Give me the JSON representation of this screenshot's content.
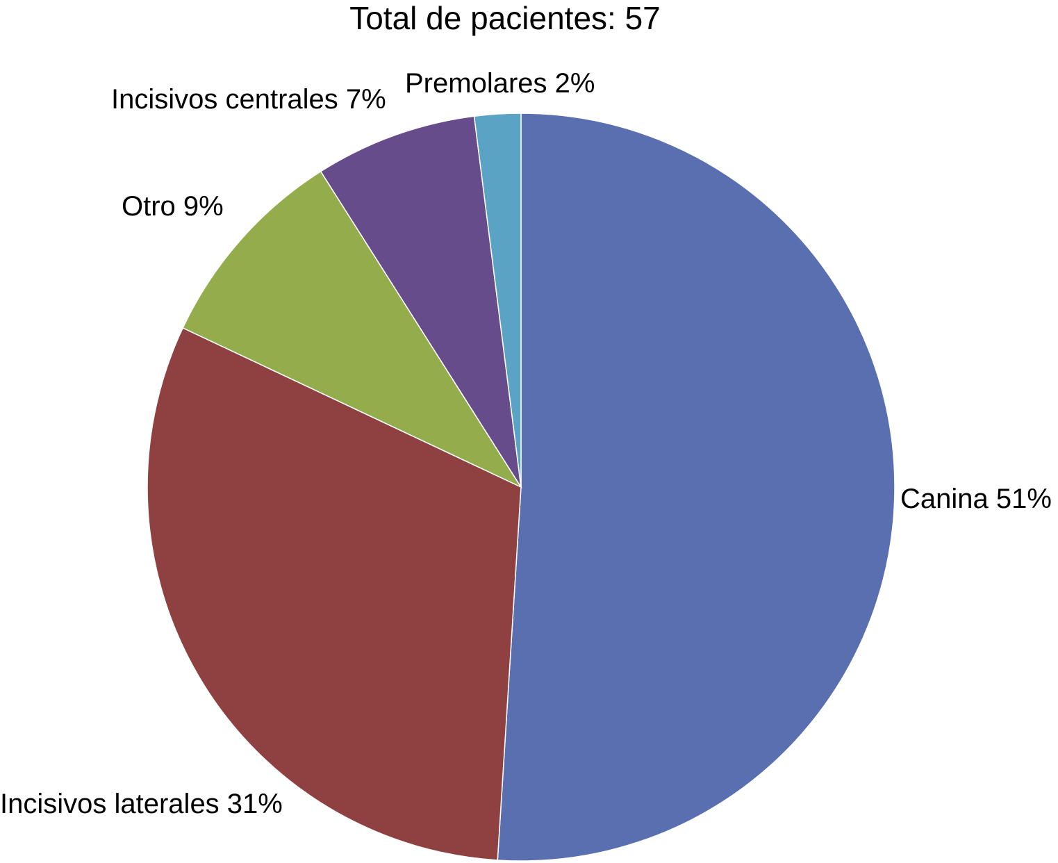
{
  "chart_data": {
    "type": "pie",
    "title": "Total de pacientes: 57",
    "slices": [
      {
        "name": "Canina",
        "value": 51,
        "label": "Canina 51%",
        "color": "#5a6fb0"
      },
      {
        "name": "Incisivos laterales",
        "value": 31,
        "label": "Incisivos laterales 31%",
        "color": "#8f4142"
      },
      {
        "name": "Otro",
        "value": 9,
        "label": "Otro 9%",
        "color": "#93ad4d"
      },
      {
        "name": "Incisivos centrales",
        "value": 7,
        "label": "Incisivos centrales 7%",
        "color": "#674c8c"
      },
      {
        "name": "Premolares",
        "value": 2,
        "label": "Premolares 2%",
        "color": "#5aa3c4"
      }
    ],
    "legend": "none"
  }
}
